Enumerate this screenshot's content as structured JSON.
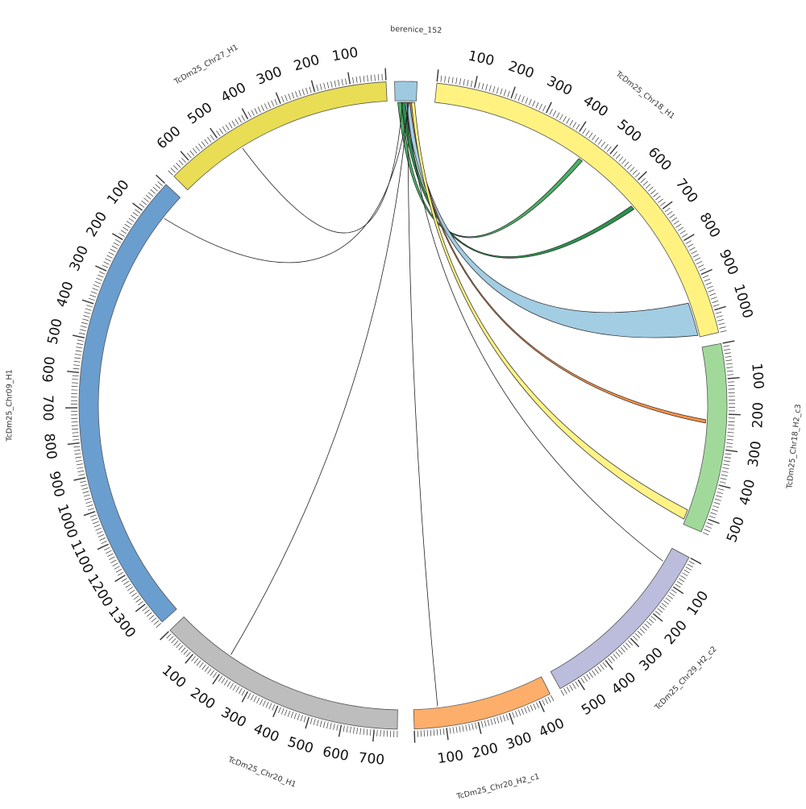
{
  "diagram": {
    "type": "circos",
    "segments": [
      {
        "id": "berenice",
        "label": "berenice_152",
        "length": 40,
        "color": "#9ecae1",
        "ticks": []
      },
      {
        "id": "chr18h1",
        "label": "TcDm25_Chr18_H1",
        "length": 1060,
        "color": "#fff281",
        "ticks": [
          "100",
          "200",
          "300",
          "400",
          "500",
          "600",
          "700",
          "800",
          "900",
          "1000"
        ]
      },
      {
        "id": "chr18h2c3",
        "label": "TcDm25_Chr18_H2_c3",
        "length": 540,
        "color": "#a1d99b",
        "ticks": [
          "100",
          "200",
          "300",
          "400",
          "500"
        ]
      },
      {
        "id": "chr29h2c2",
        "label": "TcDm25_Chr29_H2_c2",
        "length": 560,
        "color": "#bcbddc",
        "ticks": [
          "100",
          "200",
          "300",
          "400",
          "500"
        ]
      },
      {
        "id": "chr20h2c1",
        "label": "TcDm25_Chr20_H2_c1",
        "length": 440,
        "color": "#fdae6b",
        "ticks": [
          "100",
          "200",
          "300",
          "400"
        ]
      },
      {
        "id": "chr20h1",
        "label": "TcDm25_Chr20_H1",
        "length": 770,
        "color": "#bdbdbd",
        "ticks": [
          "100",
          "200",
          "300",
          "400",
          "500",
          "600",
          "700"
        ]
      },
      {
        "id": "chr09h1",
        "label": "TcDm25_Chr09_H1",
        "length": 1370,
        "color": "#6a9ecf",
        "ticks": [
          "100",
          "200",
          "300",
          "400",
          "500",
          "600",
          "700",
          "800",
          "900",
          "1000",
          "1100",
          "1200",
          "1300"
        ]
      },
      {
        "id": "chr27h1",
        "label": "TcDm25_Chr27_H1",
        "length": 660,
        "color": "#e8dd54",
        "ticks": [
          "100",
          "200",
          "300",
          "400",
          "500",
          "600"
        ]
      }
    ],
    "links": [
      {
        "from": "berenice",
        "to": "chr18h1",
        "color": "#41ab5d"
      },
      {
        "from": "berenice",
        "to": "chr18h1",
        "color": "#238b45"
      },
      {
        "from": "berenice",
        "to": "chr18h1",
        "color": "#9ecae1"
      },
      {
        "from": "berenice",
        "to": "chr18h2c3",
        "color": "#fd8d3c"
      },
      {
        "from": "berenice",
        "to": "chr18h2c3",
        "color": "#fff281"
      },
      {
        "from": "berenice",
        "to": "chr29h2c2",
        "color": "#222222"
      },
      {
        "from": "berenice",
        "to": "chr20h2c1",
        "color": "#e6550d"
      },
      {
        "from": "berenice",
        "to": "chr20h1",
        "color": "#8c2d04"
      },
      {
        "from": "berenice",
        "to": "chr09h1",
        "color": "#222222"
      },
      {
        "from": "berenice",
        "to": "chr27h1",
        "color": "#8c2d04"
      }
    ]
  }
}
